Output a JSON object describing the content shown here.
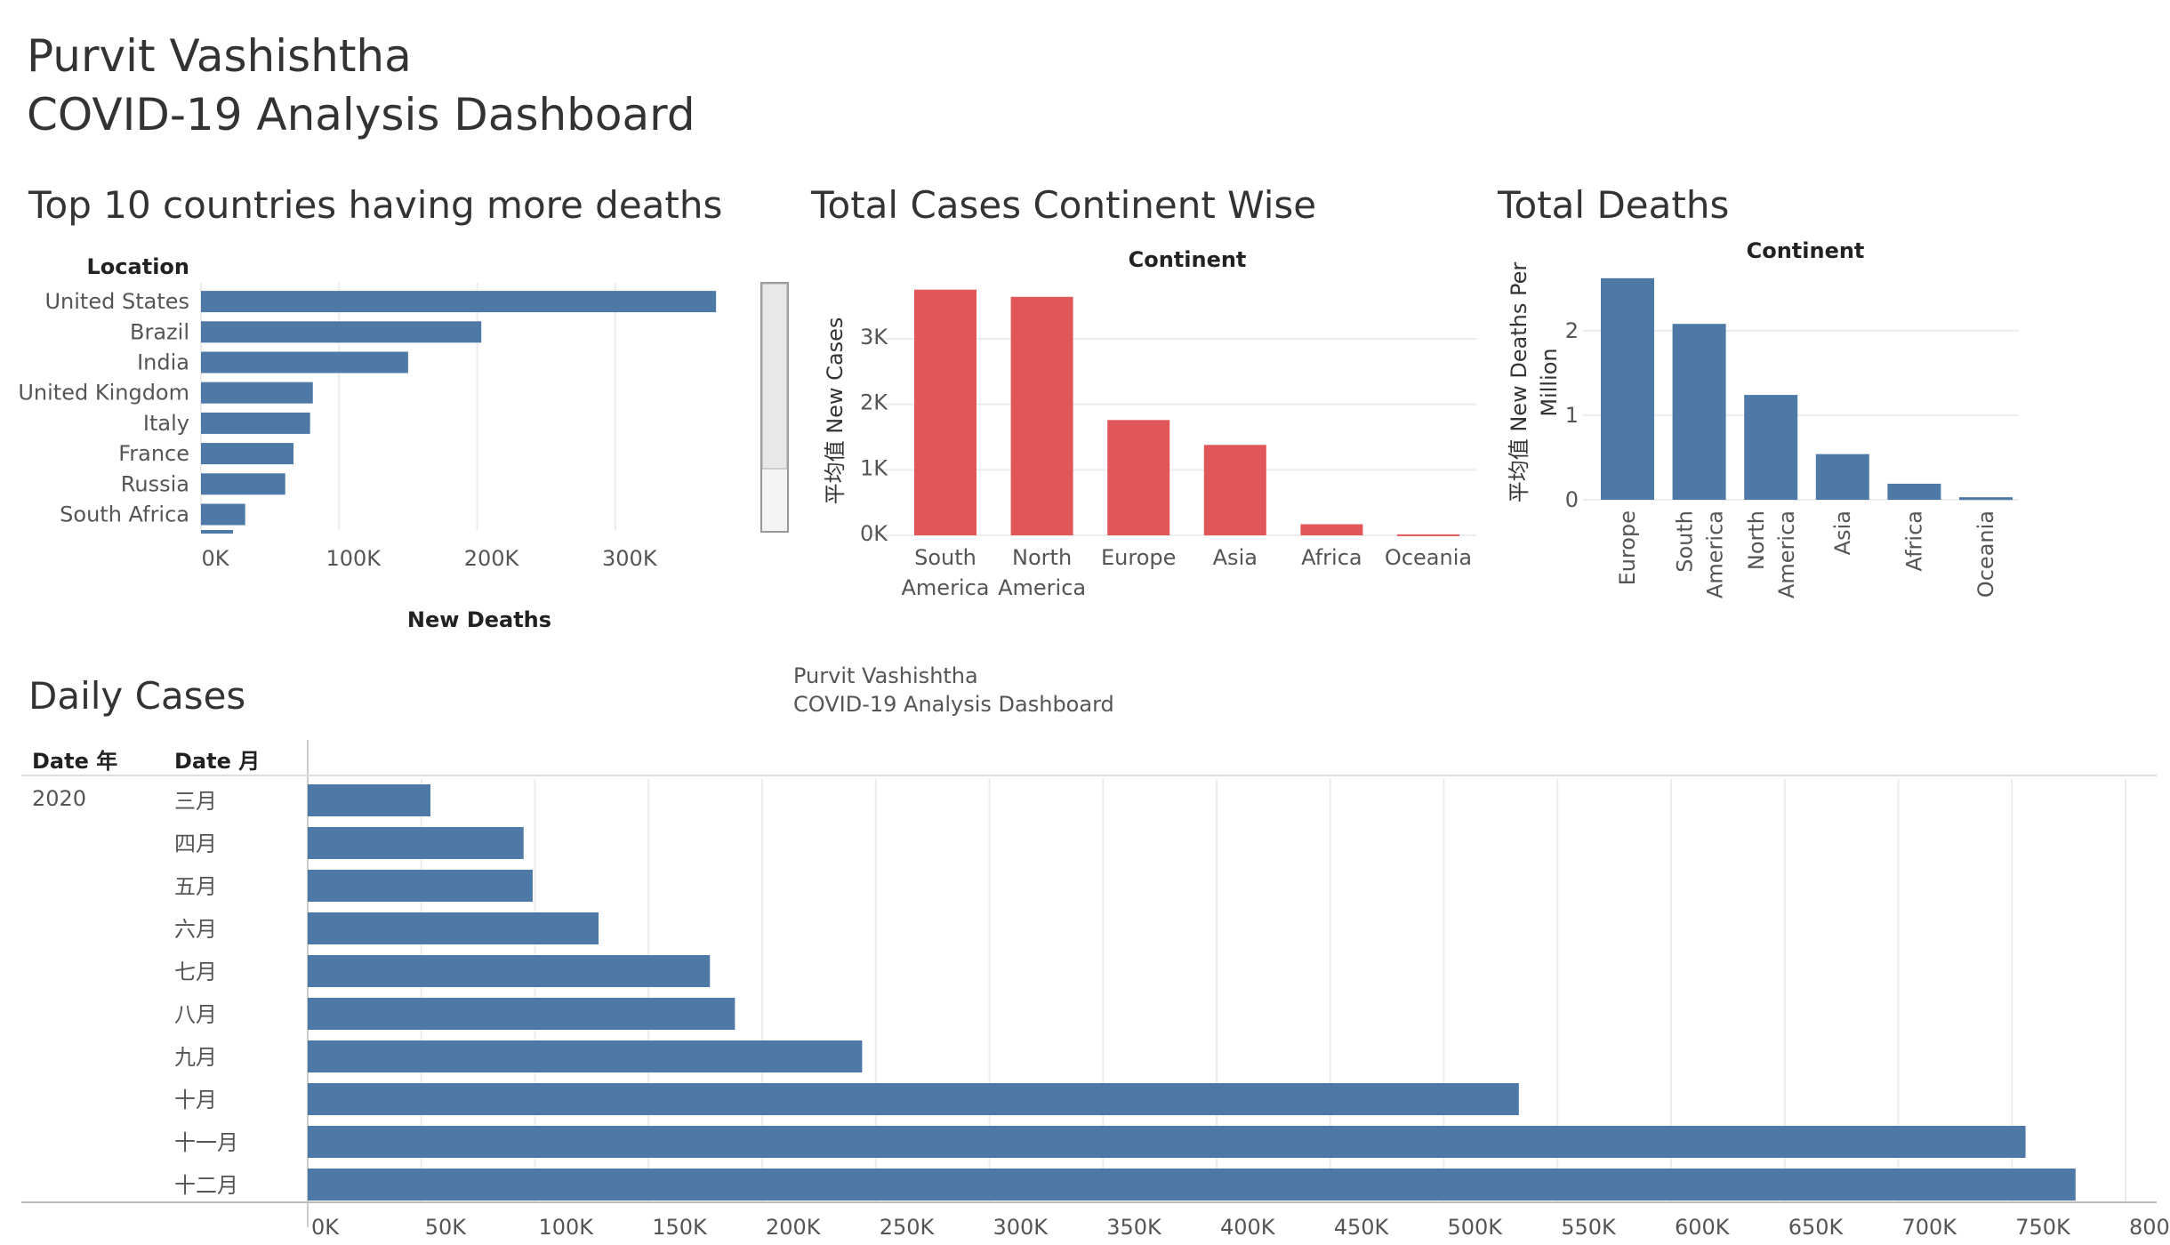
{
  "header": {
    "author": "Purvit Vashishtha",
    "dashboard_title": "COVID-19 Analysis Dashboard"
  },
  "watermark": {
    "line1": "Purvit Vashishtha",
    "line2": "COVID-19 Analysis Dashboard"
  },
  "colors": {
    "blue": "#4e79a7",
    "red": "#e15759",
    "grid": "#ececec",
    "axis": "#cccccc"
  },
  "chart_data": [
    {
      "id": "top10",
      "type": "bar",
      "orientation": "horizontal",
      "title": "Top 10 countries having more deaths",
      "row_header": "Location",
      "xlabel": "New Deaths",
      "categories": [
        "United States",
        "Brazil",
        "India",
        "United Kingdom",
        "Italy",
        "France",
        "Russia",
        "South Africa"
      ],
      "values": [
        373000,
        203000,
        150000,
        81000,
        79000,
        67000,
        61000,
        32000
      ],
      "xlim": [
        0,
        380000
      ],
      "xticks": [
        0,
        100000,
        200000,
        300000
      ],
      "xtick_labels": [
        "0K",
        "100K",
        "200K",
        "300K"
      ],
      "grid": true
    },
    {
      "id": "continent_cases",
      "type": "bar",
      "title": "Total Cases Continent Wise",
      "column_header": "Continent",
      "ylabel": "平均值 New Cases",
      "categories": [
        "South America",
        "North America",
        "Europe",
        "Asia",
        "Africa",
        "Oceania"
      ],
      "values": [
        3750,
        3640,
        1760,
        1380,
        170,
        15
      ],
      "ylim": [
        0,
        3800
      ],
      "yticks": [
        0,
        1000,
        2000,
        3000
      ],
      "ytick_labels": [
        "0K",
        "1K",
        "2K",
        "3K"
      ],
      "grid": true
    },
    {
      "id": "total_deaths",
      "type": "bar",
      "title": "Total Deaths",
      "column_header": "Continent",
      "ylabel": "平均值 New Deaths Per Million",
      "categories": [
        "Europe",
        "South America",
        "North America",
        "Asia",
        "Africa",
        "Oceania"
      ],
      "values": [
        2.62,
        2.08,
        1.24,
        0.54,
        0.19,
        0.03
      ],
      "ylim": [
        0,
        2.65
      ],
      "yticks": [
        0,
        1,
        2
      ],
      "ytick_labels": [
        "0",
        "1",
        "2"
      ],
      "grid": true
    },
    {
      "id": "daily_cases",
      "type": "bar",
      "orientation": "horizontal",
      "title": "Daily Cases",
      "row_headers": [
        "Date 年",
        "Date 月"
      ],
      "year": "2020",
      "categories": [
        "三月",
        "四月",
        "五月",
        "六月",
        "七月",
        "八月",
        "九月",
        "十月",
        "十一月",
        "十二月"
      ],
      "values": [
        54000,
        95000,
        99000,
        128000,
        177000,
        188000,
        244000,
        533000,
        756000,
        778000
      ],
      "xlim": [
        0,
        815000
      ],
      "xticks": [
        0,
        50000,
        100000,
        150000,
        200000,
        250000,
        300000,
        350000,
        400000,
        450000,
        500000,
        550000,
        600000,
        650000,
        700000,
        750000,
        800000
      ],
      "xtick_labels": [
        "0K",
        "50K",
        "100K",
        "150K",
        "200K",
        "250K",
        "300K",
        "350K",
        "400K",
        "450K",
        "500K",
        "550K",
        "600K",
        "650K",
        "700K",
        "750K",
        "800K"
      ],
      "grid": true
    }
  ]
}
